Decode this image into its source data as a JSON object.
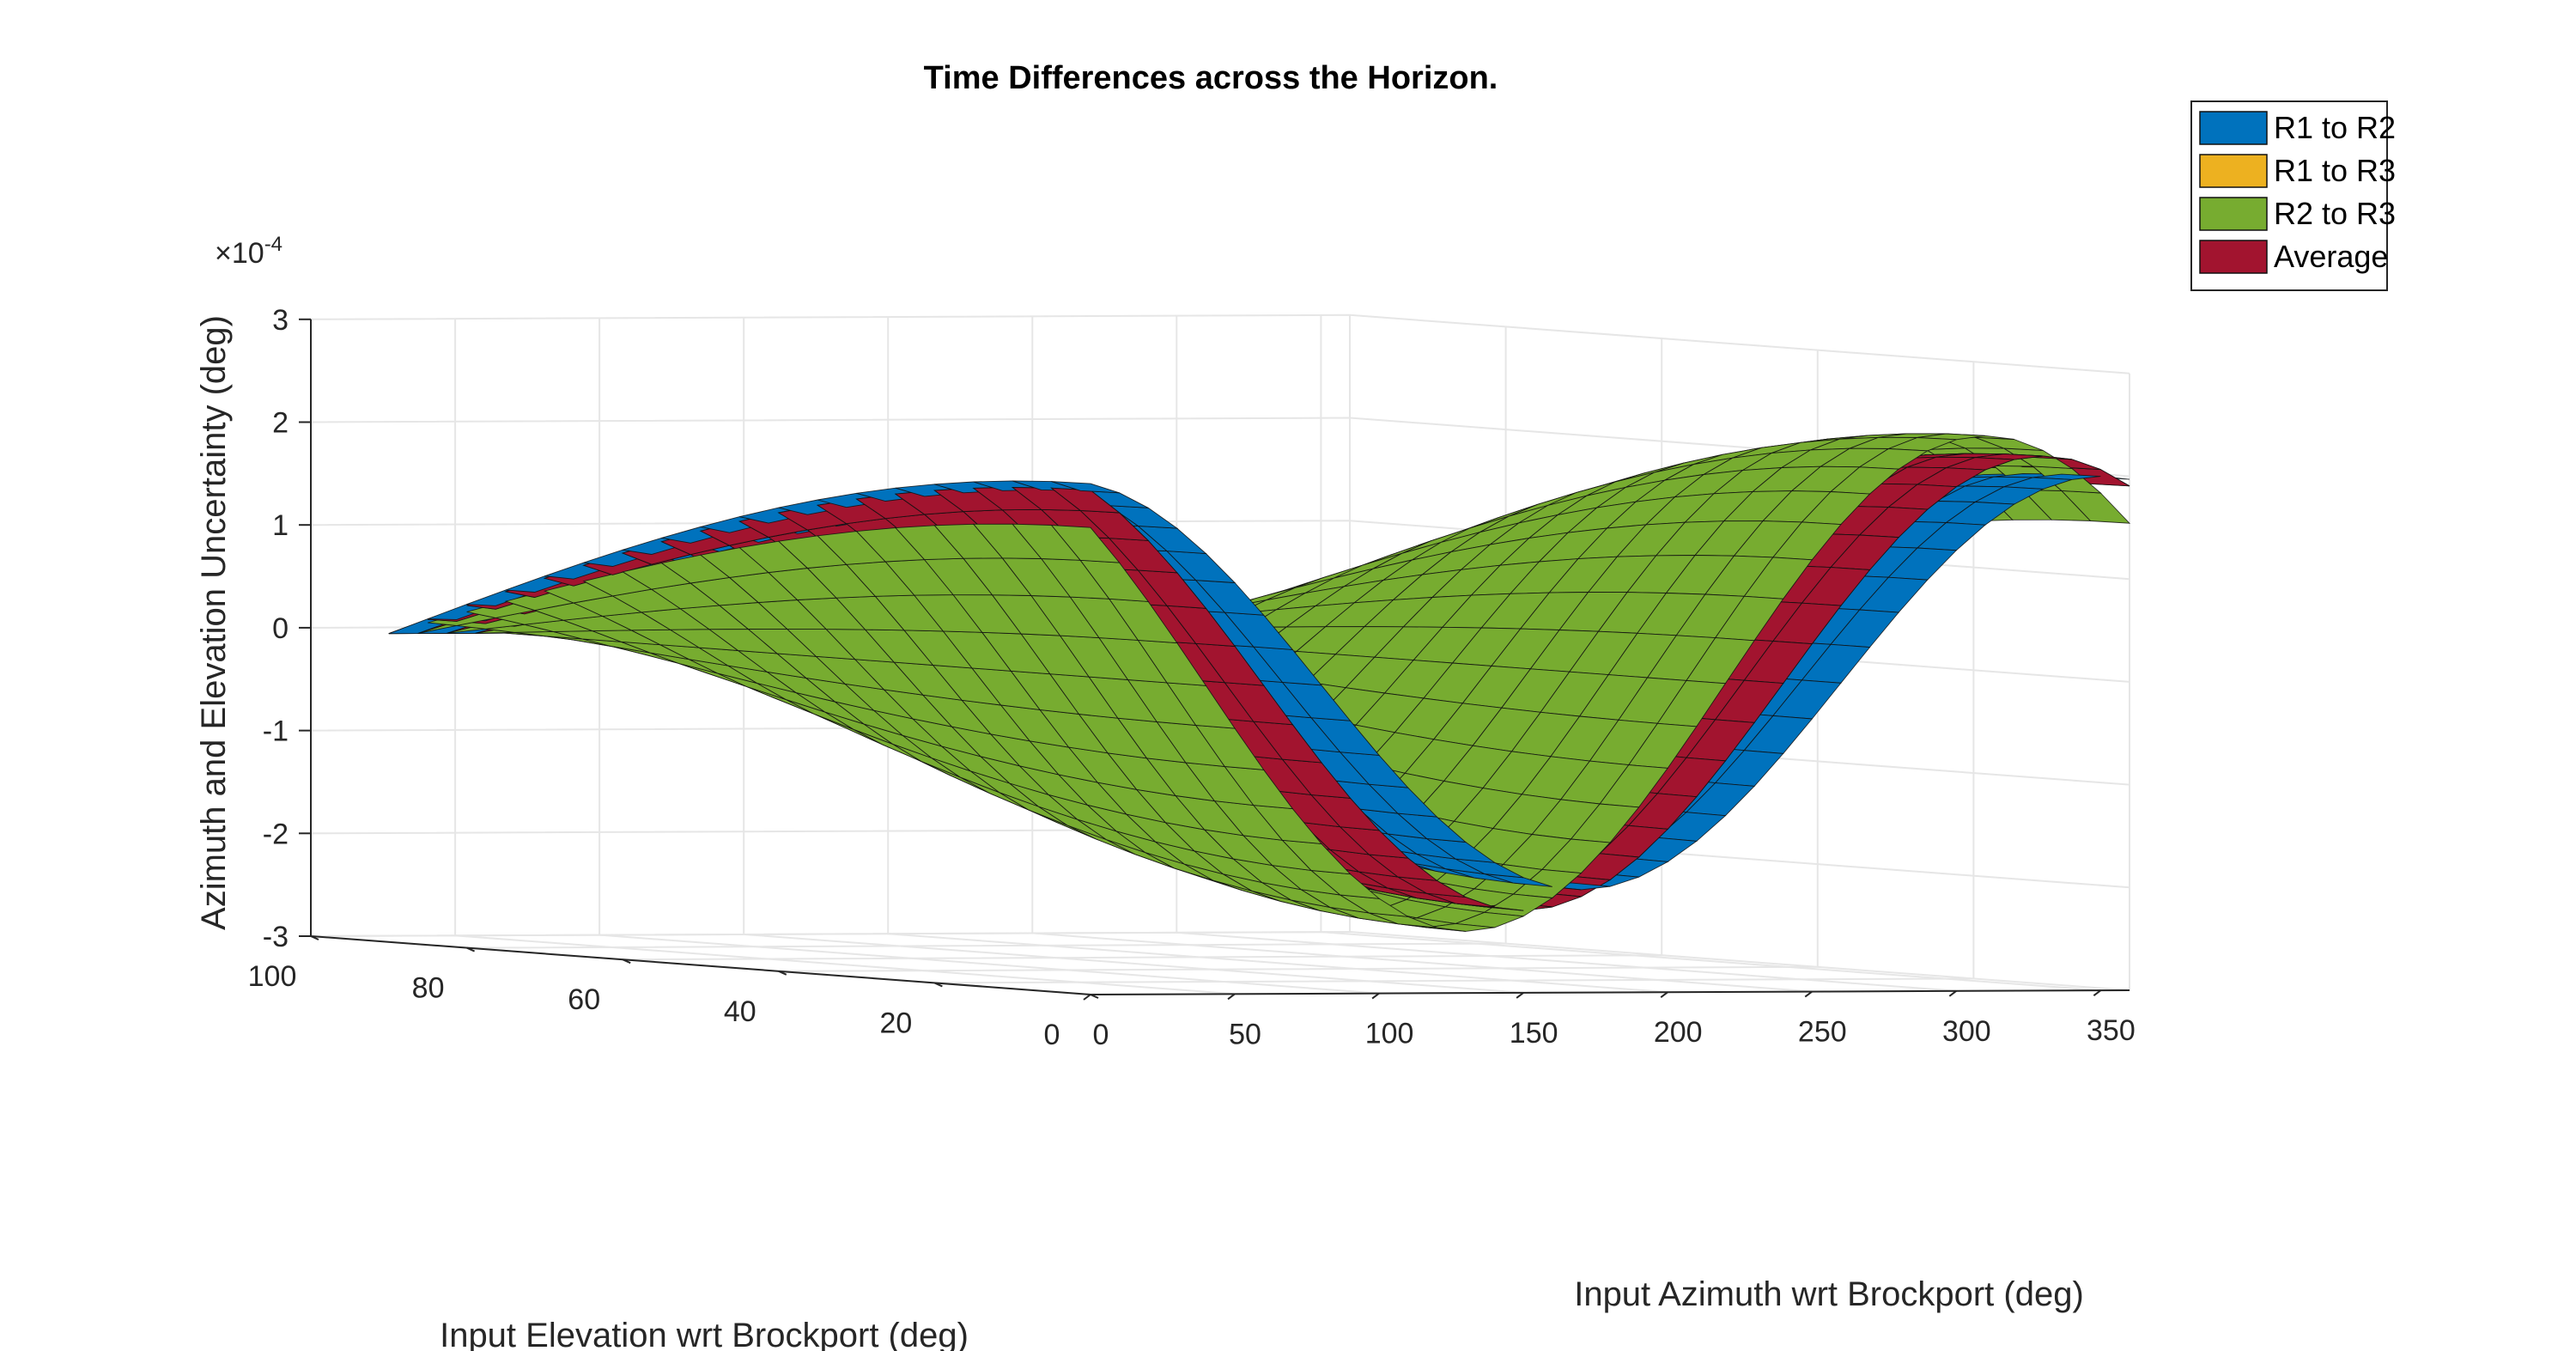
{
  "chart_data": {
    "type": "surface3d",
    "title": "Time Differences across the Horizon.",
    "xlabel": "Input Azimuth wrt Brockport (deg)",
    "ylabel": "Input Elevation wrt Brockport (deg)",
    "zlabel": "Azimuth and Elevation Uncertainty (deg)",
    "z_exponent_label": "×10",
    "z_exponent_power": "-4",
    "xlim": [
      0,
      360
    ],
    "ylim": [
      0,
      100
    ],
    "zlim": [
      -3,
      3
    ],
    "x_ticks": [
      "0",
      "50",
      "100",
      "150",
      "200",
      "250",
      "300",
      "350"
    ],
    "y_ticks": [
      "0",
      "20",
      "40",
      "60",
      "80",
      "100"
    ],
    "z_ticks": [
      "-3",
      "-2",
      "-1",
      "0",
      "1",
      "2",
      "3"
    ],
    "grid": "on",
    "legend_position": "top-right",
    "grid_resolution": {
      "azimuth_steps": 36,
      "elevation_steps": 18
    },
    "series": [
      {
        "name": "R1 to R2",
        "color": "#0072BD",
        "model": {
          "amplitude_e4": 2.0,
          "phase_deg": 80,
          "elev_cos_power": 1
        }
      },
      {
        "name": "R1 to R3",
        "color": "#EDB120",
        "model": {
          "amplitude_e4": 2.2,
          "phase_deg": 60,
          "elev_cos_power": 1
        }
      },
      {
        "name": "R2 to R3",
        "color": "#77AC30",
        "model": {
          "amplitude_e4": 2.4,
          "phase_deg": 40,
          "elev_cos_power": 1
        }
      },
      {
        "name": "Average",
        "color": "#A2142F",
        "model": {
          "amplitude_e4": 2.2,
          "phase_deg": 60,
          "elev_cos_power": 1
        }
      }
    ]
  }
}
